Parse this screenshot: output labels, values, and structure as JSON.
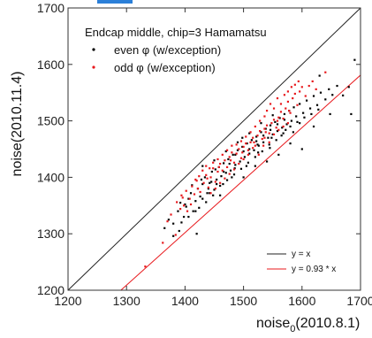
{
  "chart_data": {
    "type": "scatter",
    "annotation": "Endcap middle, chip=3 Hamamatsu",
    "xlabel": "noise",
    "xlabel_sub": "0",
    "xlabel_suffix": "(2010.8.1)",
    "ylabel": "noise(2010.11.4)",
    "xlim": [
      1200,
      1700
    ],
    "ylim": [
      1200,
      1700
    ],
    "x_ticks": [
      1200,
      1300,
      1400,
      1500,
      1600,
      1700
    ],
    "y_ticks": [
      1200,
      1300,
      1400,
      1500,
      1600,
      1700
    ],
    "grid": false,
    "legend_position": "top-left",
    "line_legend_position": "bottom-right",
    "colors": {
      "even": "#000000",
      "odd": "#e8191d",
      "ref": "#222222",
      "fit": "#e8191d"
    },
    "series": [
      {
        "name": "even φ (w/exception)",
        "marker": "dot",
        "color": "#000000",
        "points": [
          [
            1365,
            1310
          ],
          [
            1372,
            1325
          ],
          [
            1380,
            1318
          ],
          [
            1388,
            1340
          ],
          [
            1392,
            1355
          ],
          [
            1398,
            1330
          ],
          [
            1402,
            1348
          ],
          [
            1406,
            1362
          ],
          [
            1410,
            1372
          ],
          [
            1414,
            1340
          ],
          [
            1418,
            1358
          ],
          [
            1422,
            1380
          ],
          [
            1426,
            1366
          ],
          [
            1430,
            1388
          ],
          [
            1434,
            1400
          ],
          [
            1438,
            1372
          ],
          [
            1442,
            1390
          ],
          [
            1446,
            1410
          ],
          [
            1450,
            1378
          ],
          [
            1454,
            1396
          ],
          [
            1458,
            1418
          ],
          [
            1462,
            1402
          ],
          [
            1466,
            1425
          ],
          [
            1470,
            1408
          ],
          [
            1474,
            1432
          ],
          [
            1478,
            1412
          ],
          [
            1482,
            1440
          ],
          [
            1486,
            1422
          ],
          [
            1490,
            1448
          ],
          [
            1494,
            1428
          ],
          [
            1498,
            1454
          ],
          [
            1502,
            1436
          ],
          [
            1506,
            1460
          ],
          [
            1510,
            1442
          ],
          [
            1514,
            1466
          ],
          [
            1518,
            1448
          ],
          [
            1522,
            1472
          ],
          [
            1526,
            1456
          ],
          [
            1530,
            1480
          ],
          [
            1534,
            1462
          ],
          [
            1538,
            1486
          ],
          [
            1542,
            1470
          ],
          [
            1546,
            1492
          ],
          [
            1550,
            1476
          ],
          [
            1554,
            1498
          ],
          [
            1558,
            1482
          ],
          [
            1562,
            1505
          ],
          [
            1566,
            1488
          ],
          [
            1570,
            1512
          ],
          [
            1574,
            1494
          ],
          [
            1578,
            1518
          ],
          [
            1582,
            1500
          ],
          [
            1586,
            1524
          ],
          [
            1590,
            1508
          ],
          [
            1596,
            1530
          ],
          [
            1602,
            1514
          ],
          [
            1608,
            1536
          ],
          [
            1614,
            1522
          ],
          [
            1620,
            1544
          ],
          [
            1626,
            1528
          ],
          [
            1632,
            1550
          ],
          [
            1640,
            1538
          ],
          [
            1646,
            1556
          ],
          [
            1652,
            1546
          ],
          [
            1660,
            1562
          ],
          [
            1670,
            1545
          ],
          [
            1680,
            1560
          ],
          [
            1690,
            1608
          ],
          [
            1684,
            1512
          ],
          [
            1648,
            1512
          ],
          [
            1630,
            1580
          ],
          [
            1600,
            1450
          ],
          [
            1560,
            1440
          ],
          [
            1520,
            1420
          ],
          [
            1480,
            1400
          ],
          [
            1440,
            1380
          ],
          [
            1400,
            1352
          ],
          [
            1390,
            1305
          ],
          [
            1420,
            1300
          ],
          [
            1380,
            1296
          ],
          [
            1460,
            1368
          ],
          [
            1500,
            1400
          ],
          [
            1540,
            1428
          ],
          [
            1580,
            1460
          ],
          [
            1620,
            1490
          ],
          [
            1430,
            1420
          ],
          [
            1450,
            1430
          ],
          [
            1470,
            1446
          ],
          [
            1490,
            1462
          ],
          [
            1510,
            1478
          ],
          [
            1530,
            1496
          ],
          [
            1550,
            1510
          ],
          [
            1445,
            1392
          ],
          [
            1465,
            1388
          ],
          [
            1485,
            1416
          ],
          [
            1505,
            1420
          ],
          [
            1525,
            1444
          ],
          [
            1545,
            1452
          ],
          [
            1565,
            1474
          ],
          [
            1585,
            1480
          ],
          [
            1412,
            1386
          ],
          [
            1424,
            1346
          ],
          [
            1436,
            1356
          ],
          [
            1448,
            1368
          ],
          [
            1460,
            1385
          ],
          [
            1472,
            1395
          ],
          [
            1484,
            1405
          ],
          [
            1496,
            1415
          ],
          [
            1508,
            1426
          ],
          [
            1520,
            1436
          ],
          [
            1532,
            1446
          ],
          [
            1544,
            1458
          ],
          [
            1556,
            1466
          ],
          [
            1568,
            1478
          ],
          [
            1580,
            1490
          ],
          [
            1592,
            1498
          ],
          [
            1604,
            1506
          ],
          [
            1616,
            1512
          ],
          [
            1628,
            1520
          ],
          [
            1486,
            1440
          ],
          [
            1498,
            1470
          ],
          [
            1510,
            1450
          ],
          [
            1522,
            1464
          ],
          [
            1534,
            1474
          ],
          [
            1546,
            1484
          ],
          [
            1558,
            1494
          ],
          [
            1570,
            1502
          ],
          [
            1466,
            1410
          ],
          [
            1454,
            1388
          ],
          [
            1442,
            1372
          ],
          [
            1430,
            1362
          ],
          [
            1418,
            1340
          ],
          [
            1406,
            1330
          ],
          [
            1394,
            1320
          ],
          [
            1428,
            1396
          ],
          [
            1452,
            1414
          ],
          [
            1476,
            1424
          ],
          [
            1500,
            1446
          ],
          [
            1524,
            1458
          ],
          [
            1548,
            1470
          ],
          [
            1572,
            1484
          ],
          [
            1596,
            1496
          ]
        ]
      },
      {
        "name": "odd φ (w/exception)",
        "marker": "dot",
        "color": "#e8191d",
        "points": [
          [
            1332,
            1242
          ],
          [
            1362,
            1284
          ],
          [
            1370,
            1322
          ],
          [
            1376,
            1334
          ],
          [
            1384,
            1298
          ],
          [
            1392,
            1344
          ],
          [
            1396,
            1364
          ],
          [
            1404,
            1340
          ],
          [
            1410,
            1352
          ],
          [
            1416,
            1370
          ],
          [
            1420,
            1394
          ],
          [
            1426,
            1374
          ],
          [
            1432,
            1390
          ],
          [
            1436,
            1404
          ],
          [
            1440,
            1382
          ],
          [
            1444,
            1400
          ],
          [
            1448,
            1416
          ],
          [
            1452,
            1392
          ],
          [
            1456,
            1410
          ],
          [
            1460,
            1424
          ],
          [
            1464,
            1412
          ],
          [
            1468,
            1430
          ],
          [
            1472,
            1418
          ],
          [
            1476,
            1436
          ],
          [
            1480,
            1444
          ],
          [
            1484,
            1426
          ],
          [
            1488,
            1442
          ],
          [
            1492,
            1450
          ],
          [
            1496,
            1434
          ],
          [
            1500,
            1454
          ],
          [
            1504,
            1460
          ],
          [
            1508,
            1448
          ],
          [
            1512,
            1462
          ],
          [
            1516,
            1470
          ],
          [
            1520,
            1456
          ],
          [
            1524,
            1474
          ],
          [
            1528,
            1482
          ],
          [
            1532,
            1468
          ],
          [
            1536,
            1486
          ],
          [
            1540,
            1492
          ],
          [
            1544,
            1478
          ],
          [
            1548,
            1496
          ],
          [
            1552,
            1502
          ],
          [
            1556,
            1488
          ],
          [
            1560,
            1506
          ],
          [
            1564,
            1516
          ],
          [
            1568,
            1504
          ],
          [
            1572,
            1522
          ],
          [
            1576,
            1534
          ],
          [
            1580,
            1514
          ],
          [
            1584,
            1540
          ],
          [
            1588,
            1548
          ],
          [
            1592,
            1528
          ],
          [
            1596,
            1552
          ],
          [
            1600,
            1560
          ],
          [
            1606,
            1544
          ],
          [
            1612,
            1562
          ],
          [
            1618,
            1570
          ],
          [
            1624,
            1556
          ],
          [
            1640,
            1586
          ],
          [
            1536,
            1508
          ],
          [
            1540,
            1518
          ],
          [
            1528,
            1500
          ],
          [
            1520,
            1490
          ],
          [
            1512,
            1480
          ],
          [
            1504,
            1472
          ],
          [
            1496,
            1464
          ],
          [
            1488,
            1458
          ],
          [
            1480,
            1456
          ],
          [
            1472,
            1448
          ],
          [
            1464,
            1440
          ],
          [
            1456,
            1432
          ],
          [
            1448,
            1426
          ],
          [
            1442,
            1416
          ],
          [
            1436,
            1420
          ],
          [
            1430,
            1412
          ],
          [
            1424,
            1402
          ],
          [
            1418,
            1396
          ],
          [
            1412,
            1384
          ],
          [
            1402,
            1376
          ],
          [
            1394,
            1368
          ],
          [
            1546,
            1530
          ],
          [
            1552,
            1522
          ],
          [
            1558,
            1540
          ],
          [
            1564,
            1530
          ],
          [
            1570,
            1546
          ],
          [
            1576,
            1552
          ],
          [
            1582,
            1560
          ],
          [
            1588,
            1564
          ],
          [
            1594,
            1570
          ],
          [
            1516,
            1452
          ],
          [
            1508,
            1440
          ],
          [
            1500,
            1432
          ],
          [
            1492,
            1424
          ],
          [
            1484,
            1414
          ],
          [
            1476,
            1406
          ],
          [
            1468,
            1398
          ],
          [
            1460,
            1390
          ],
          [
            1452,
            1380
          ],
          [
            1444,
            1372
          ],
          [
            1536,
            1470
          ],
          [
            1544,
            1462
          ],
          [
            1552,
            1476
          ],
          [
            1560,
            1484
          ],
          [
            1568,
            1490
          ],
          [
            1576,
            1496
          ],
          [
            1526,
            1440
          ],
          [
            1534,
            1456
          ],
          [
            1386,
            1356
          ],
          [
            1398,
            1350
          ],
          [
            1408,
            1362
          ],
          [
            1422,
            1380
          ],
          [
            1438,
            1398
          ],
          [
            1458,
            1418
          ],
          [
            1478,
            1430
          ],
          [
            1498,
            1444
          ],
          [
            1518,
            1462
          ],
          [
            1538,
            1480
          ],
          [
            1558,
            1500
          ],
          [
            1578,
            1518
          ]
        ]
      }
    ],
    "lines": [
      {
        "name": "y = x",
        "slope": 1.0,
        "color": "#222222"
      },
      {
        "name": "y = 0.93 * x",
        "slope": 0.93,
        "color": "#e8191d"
      }
    ]
  }
}
